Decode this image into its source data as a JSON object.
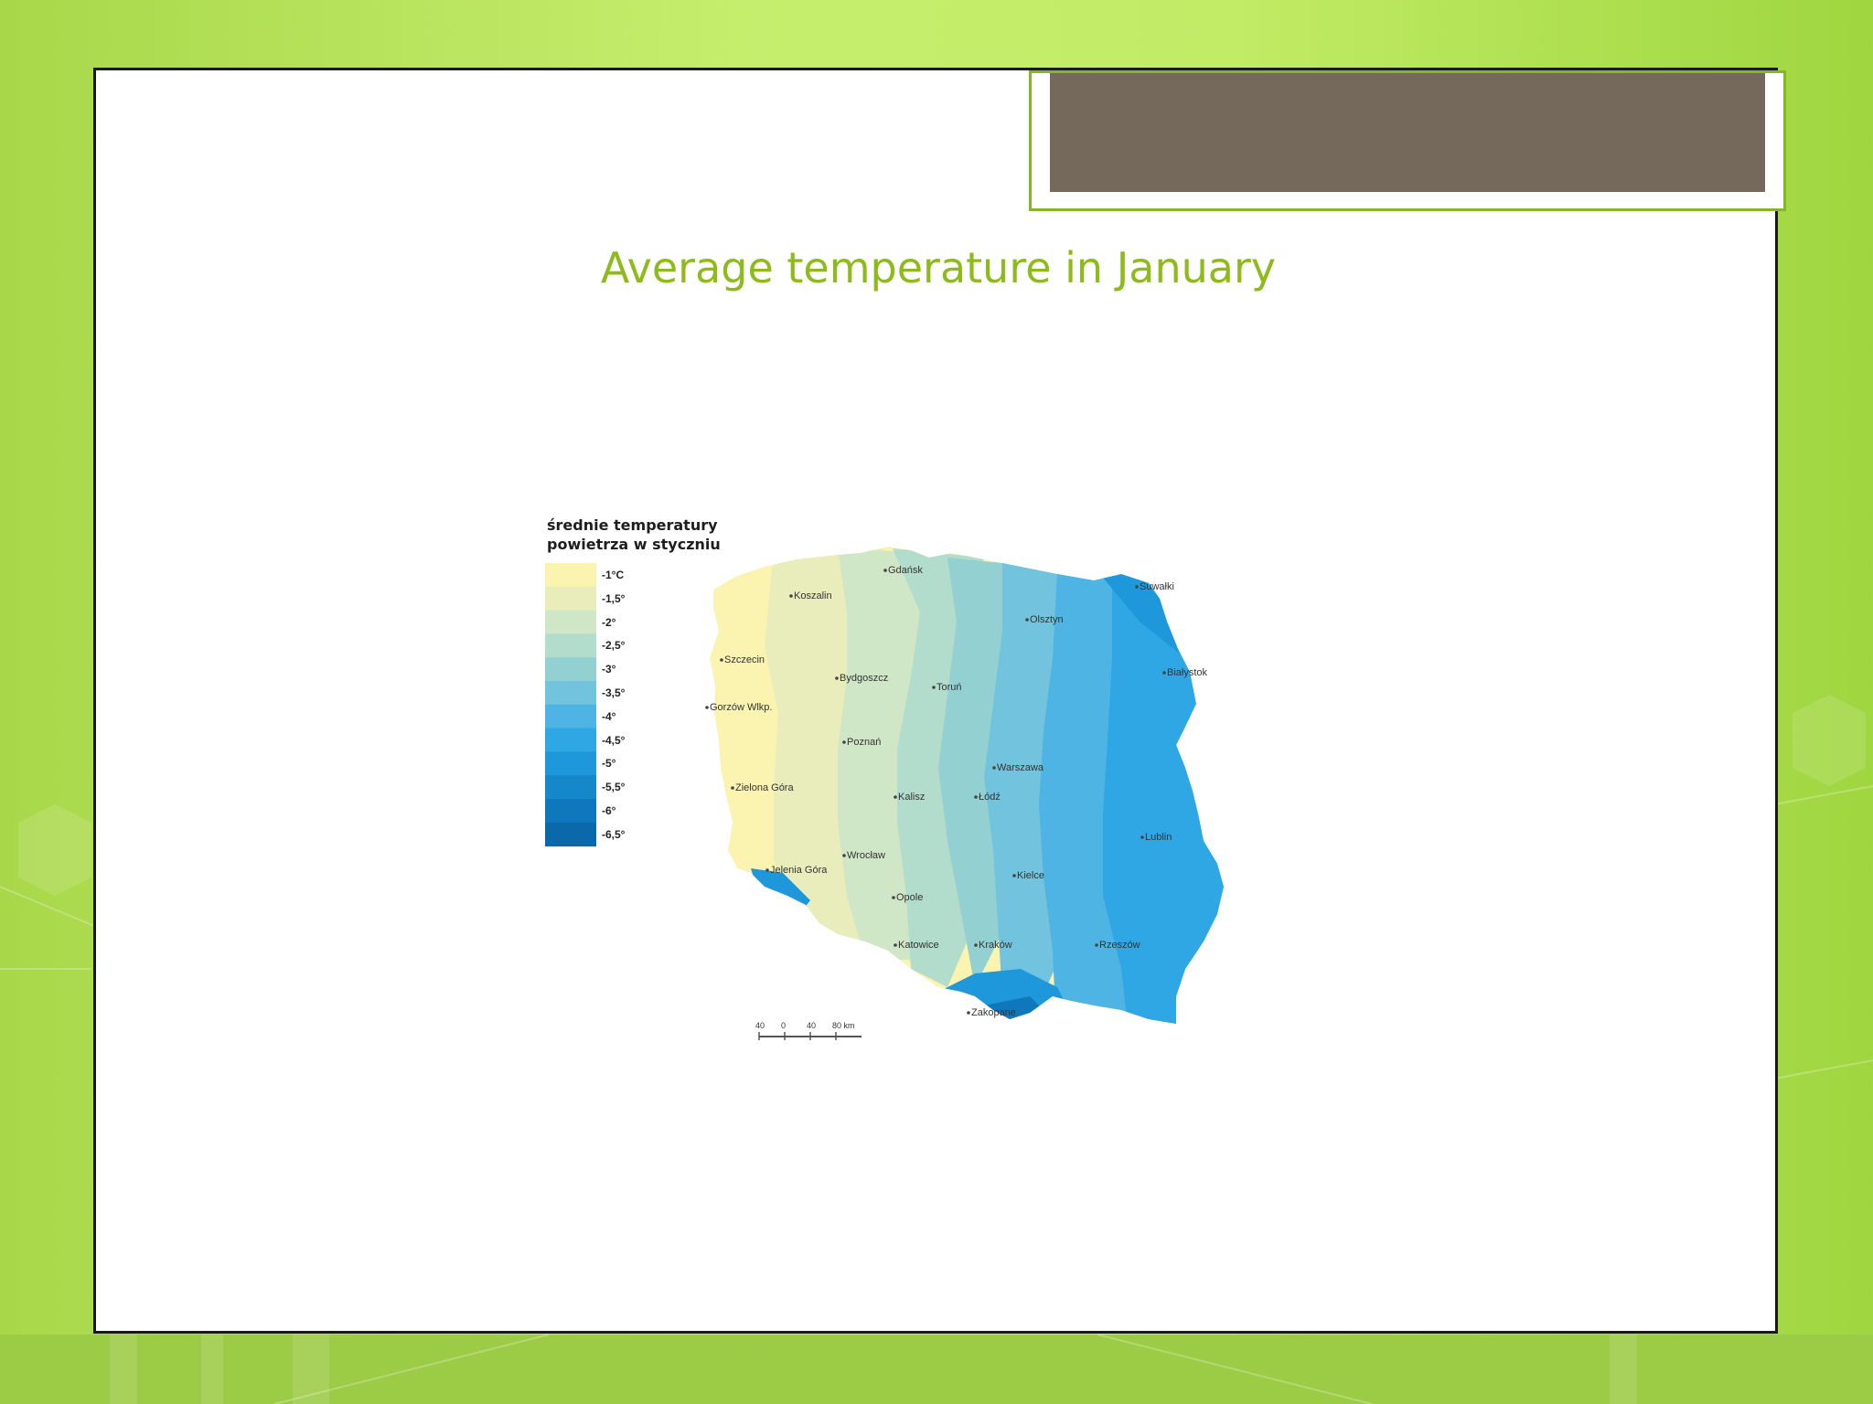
{
  "slide": {
    "title": "Average temperature in January"
  },
  "map": {
    "legend_title": "średnie temperatury\npowietrza w styczniu",
    "legend": [
      {
        "label": "-1°C",
        "color": "#fbf3b0"
      },
      {
        "label": "-1,5°",
        "color": "#e9ecbb"
      },
      {
        "label": "-2°",
        "color": "#cfe6c7"
      },
      {
        "label": "-2,5°",
        "color": "#b2dccb"
      },
      {
        "label": "-3°",
        "color": "#93d0d2"
      },
      {
        "label": "-3,5°",
        "color": "#72c3dd"
      },
      {
        "label": "-4°",
        "color": "#4db4e4"
      },
      {
        "label": "-4,5°",
        "color": "#2fa7e5"
      },
      {
        "label": "-5°",
        "color": "#1e98db"
      },
      {
        "label": "-5,5°",
        "color": "#1588cc"
      },
      {
        "label": "-6°",
        "color": "#0f78bd"
      },
      {
        "label": "-6,5°",
        "color": "#0a68ab"
      }
    ],
    "cities": [
      {
        "name": "Gdańsk"
      },
      {
        "name": "Koszalin"
      },
      {
        "name": "Olsztyn"
      },
      {
        "name": "Suwałki"
      },
      {
        "name": "Białystok"
      },
      {
        "name": "Szczecin"
      },
      {
        "name": "Bydgoszcz"
      },
      {
        "name": "Toruń"
      },
      {
        "name": "Gorzów Wlkp."
      },
      {
        "name": "Poznań"
      },
      {
        "name": "Warszawa"
      },
      {
        "name": "Zielona Góra"
      },
      {
        "name": "Kalisz"
      },
      {
        "name": "Łódź"
      },
      {
        "name": "Lublin"
      },
      {
        "name": "Wrocław"
      },
      {
        "name": "Jelenia Góra"
      },
      {
        "name": "Kielce"
      },
      {
        "name": "Opole"
      },
      {
        "name": "Katowice"
      },
      {
        "name": "Kraków"
      },
      {
        "name": "Rzeszów"
      },
      {
        "name": "Zakopane"
      }
    ],
    "scale_labels": [
      "40",
      "0",
      "40",
      "80 km"
    ]
  }
}
